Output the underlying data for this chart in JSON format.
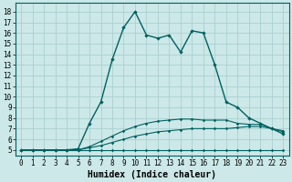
{
  "xlabel": "Humidex (Indice chaleur)",
  "bg_color": "#cce8e8",
  "line_color": "#006060",
  "grid_color": "#aad0d0",
  "xlim": [
    -0.5,
    23.5
  ],
  "ylim": [
    4.5,
    18.8
  ],
  "xticks": [
    0,
    1,
    2,
    3,
    4,
    5,
    6,
    7,
    8,
    9,
    10,
    11,
    12,
    13,
    14,
    15,
    16,
    17,
    18,
    19,
    20,
    21,
    22,
    23
  ],
  "yticks": [
    5,
    6,
    7,
    8,
    9,
    10,
    11,
    12,
    13,
    14,
    15,
    16,
    17,
    18
  ],
  "line_main_x": [
    0,
    1,
    2,
    3,
    4,
    5,
    6,
    7,
    8,
    9,
    10,
    11,
    12,
    13,
    14,
    15,
    16,
    17,
    18,
    19,
    20,
    21,
    22,
    23
  ],
  "line_main_y": [
    5,
    5,
    5,
    5,
    5,
    5.1,
    7.5,
    9.5,
    13.5,
    16.5,
    18,
    15.8,
    15.5,
    15.8,
    14.2,
    16.2,
    16,
    13,
    9.5,
    9,
    8,
    7.5,
    7.0,
    6.5
  ],
  "line2_x": [
    0,
    1,
    2,
    3,
    4,
    5,
    6,
    7,
    8,
    9,
    10,
    11,
    12,
    13,
    14,
    15,
    16,
    17,
    18,
    19,
    20,
    21,
    22,
    23
  ],
  "line2_y": [
    5,
    5,
    5,
    5,
    5,
    5,
    5.3,
    5.8,
    6.3,
    6.8,
    7.2,
    7.5,
    7.7,
    7.8,
    7.9,
    7.9,
    7.8,
    7.8,
    7.8,
    7.5,
    7.4,
    7.4,
    7.0,
    6.7
  ],
  "line3_x": [
    0,
    1,
    2,
    3,
    4,
    5,
    6,
    7,
    8,
    9,
    10,
    11,
    12,
    13,
    14,
    15,
    16,
    17,
    18,
    19,
    20,
    21,
    22,
    23
  ],
  "line3_y": [
    5,
    5,
    5,
    5,
    5,
    5,
    5.2,
    5.4,
    5.7,
    6.0,
    6.3,
    6.5,
    6.7,
    6.8,
    6.9,
    7.0,
    7.0,
    7.0,
    7.0,
    7.1,
    7.2,
    7.2,
    7.0,
    6.8
  ],
  "line4_x": [
    0,
    1,
    2,
    3,
    4,
    5,
    6,
    7,
    8,
    9,
    10,
    11,
    12,
    13,
    14,
    15,
    16,
    17,
    18,
    19,
    20,
    21,
    22,
    23
  ],
  "line4_y": [
    5,
    5,
    5,
    5,
    5,
    5,
    5,
    5,
    5,
    5,
    5,
    5,
    5,
    5,
    5,
    5,
    5,
    5,
    5,
    5,
    5,
    5,
    5,
    5
  ],
  "xlabel_fontsize": 7,
  "tick_fontsize": 5.5
}
